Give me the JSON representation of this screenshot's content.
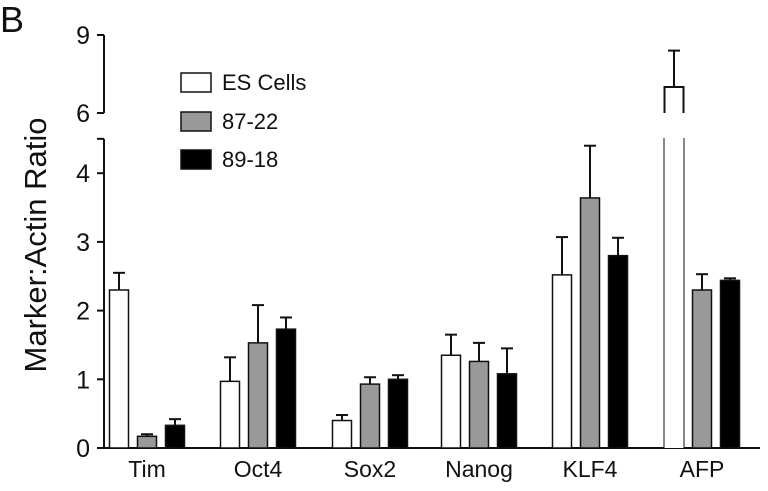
{
  "chart_data": {
    "type": "bar",
    "panel_label": "B",
    "title": "",
    "xlabel": "",
    "ylabel": "Marker:Actin Ratio",
    "categories": [
      "Tim",
      "Oct4",
      "Sox2",
      "Nanog",
      "KLF4",
      "AFP"
    ],
    "y_axis": {
      "broken": true,
      "lower_range": [
        0,
        4.5
      ],
      "upper_range": [
        6,
        9
      ],
      "lower_ticks": [
        0,
        1,
        2,
        3,
        4
      ],
      "upper_ticks": [
        6,
        9
      ]
    },
    "legend_position": "top-left",
    "grid": false,
    "series": [
      {
        "name": "ES Cells",
        "color": "#ffffff",
        "values": [
          2.3,
          0.97,
          0.4,
          1.35,
          2.52,
          7.0
        ],
        "error_upper": [
          2.55,
          1.32,
          0.48,
          1.65,
          3.07,
          8.4
        ]
      },
      {
        "name": "87-22",
        "color": "#999999",
        "values": [
          0.17,
          1.53,
          0.93,
          1.26,
          3.64,
          2.3
        ],
        "error_upper": [
          0.2,
          2.08,
          1.03,
          1.53,
          4.4,
          2.53
        ]
      },
      {
        "name": "89-18",
        "color": "#000000",
        "values": [
          0.33,
          1.73,
          1.0,
          1.08,
          2.8,
          2.44
        ],
        "error_upper": [
          0.42,
          1.9,
          1.06,
          1.45,
          3.06,
          2.47
        ]
      }
    ]
  }
}
